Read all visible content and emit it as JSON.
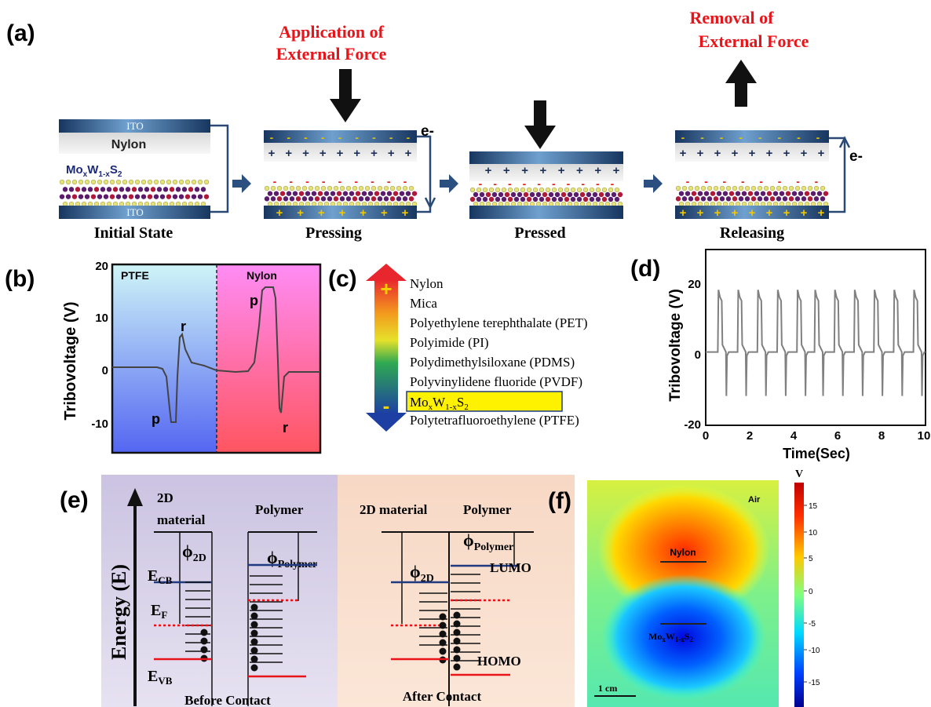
{
  "panel_a": {
    "label": "(a)",
    "caption_apply_1": "Application of",
    "caption_apply_2": "External Force",
    "caption_remove_1": "Removal of",
    "caption_remove_2": "External Force",
    "ito_label": "ITO",
    "nylon_label": "Nylon",
    "mo_base": "Mo",
    "mo_sub_x": "x",
    "mo_w": "W",
    "mo_sub_1x": "1-x",
    "mo_s": "S",
    "mo_sub_2": "2",
    "electron_label": "e-",
    "stages": [
      "Initial State",
      "Pressing",
      "Pressed",
      "Releasing"
    ],
    "plus": "+",
    "minus": "-"
  },
  "panel_b": {
    "label": "(b)",
    "ylabel": "Tribovoltage (V)",
    "region_left": "PTFE",
    "region_right": "Nylon",
    "yticks": [
      "20",
      "10",
      "0",
      "-10"
    ],
    "peak_labels": {
      "p_left": "p",
      "r_left": "r",
      "p_right": "p",
      "r_right": "r"
    },
    "colors": {
      "left_top": "#cff5f7",
      "left_bottom": "#5466f2",
      "right_top": "#ff8cf5",
      "right_bottom": "#ff5560"
    }
  },
  "panel_c": {
    "label": "(c)",
    "plus_sign": "+",
    "minus_sign": "-",
    "series": [
      "Nylon",
      "Mica",
      "Polyethylene terephthalate (PET)",
      "Polyimide (PI)",
      "Polydimethylsiloxane (PDMS)",
      "Polyvinylidene fluoride (PVDF)",
      "",
      "Polytetrafluoroethylene (PTFE)"
    ],
    "highlight": {
      "mo": "Mo",
      "x": "x",
      "w": "W",
      "onex": "1-x",
      "s": "S",
      "two": "2"
    }
  },
  "panel_d": {
    "label": "(d)",
    "ylabel": "Tribovoltage (V)",
    "xlabel": "Time(Sec)",
    "yticks": [
      "20",
      "0",
      "-20"
    ],
    "xticks": [
      "0",
      "2",
      "4",
      "6",
      "8",
      "10"
    ],
    "chart_data": {
      "type": "line",
      "x_range": [
        0,
        10
      ],
      "ylim": [
        -20,
        28
      ],
      "peak_positions": [
        0.6,
        1.5,
        2.4,
        3.3,
        4.2,
        5.0,
        5.9,
        6.8,
        7.7,
        8.6,
        9.5
      ],
      "peak_high": 17,
      "peak_low": -12
    }
  },
  "panel_e": {
    "label": "(e)",
    "axis_label": "Energy (E)",
    "left": {
      "title_1": "2D",
      "title_2": "material",
      "title_poly": "Polymer",
      "phi": "ϕ",
      "phi_2d": "2D",
      "phi_poly": "Polymer",
      "ecb": "E",
      "ecb_sub": "CB",
      "ef": "E",
      "ef_sub": "F",
      "evb": "E",
      "evb_sub": "VB",
      "caption": "Before Contact"
    },
    "right": {
      "title_2d": "2D material",
      "title_poly": "Polymer",
      "phi": "ϕ",
      "phi_2d": "2D",
      "phi_poly": "Polymer",
      "lumo": "LUMO",
      "homo": "HOMO",
      "caption": "After Contact"
    }
  },
  "panel_f": {
    "label": "(f)",
    "unit": "V",
    "air": "Air",
    "nylon": "Nylon",
    "mo": "Mo",
    "x": "x",
    "w": "W",
    "onex": "1-x",
    "s": "S",
    "two": "2",
    "scale": "1 cm",
    "colorbar_ticks": [
      "15",
      "10",
      "5",
      "0",
      "-5",
      "-10",
      "-15"
    ]
  }
}
